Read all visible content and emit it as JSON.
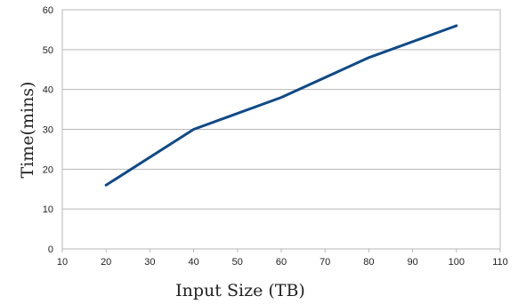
{
  "chart_data": {
    "type": "line",
    "title": "",
    "xlabel": "Input Size (TB)",
    "ylabel": "Time(mins)",
    "xlim": [
      10,
      110
    ],
    "ylim": [
      0,
      60
    ],
    "x_ticks": [
      10,
      20,
      30,
      40,
      50,
      60,
      70,
      80,
      90,
      100,
      110
    ],
    "y_ticks": [
      0,
      10,
      20,
      30,
      40,
      50,
      60
    ],
    "grid": "horizontal",
    "legend": "none",
    "series": [
      {
        "color": "#0f4a86",
        "x": [
          20,
          40,
          60,
          80,
          100
        ],
        "values": [
          16,
          30,
          38,
          48,
          56
        ]
      }
    ]
  }
}
